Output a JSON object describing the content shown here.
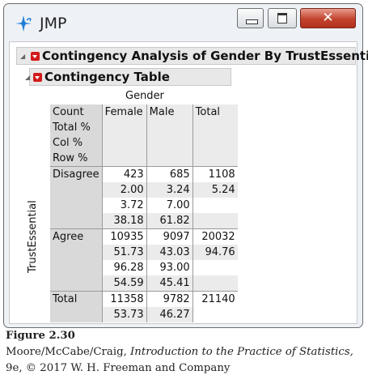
{
  "window": {
    "title": "JMP"
  },
  "outlines": {
    "analysis_title": "Contingency Analysis of Gender By TrustEssential",
    "table_title": "Contingency Table"
  },
  "contingency": {
    "column_variable": "Gender",
    "row_variable": "TrustEssential",
    "stat_labels": [
      "Count",
      "Total %",
      "Col %",
      "Row %"
    ],
    "columns": [
      "Female",
      "Male",
      "Total"
    ],
    "rows": [
      {
        "label": "Disagree",
        "cells": [
          [
            "423",
            "685",
            "1108"
          ],
          [
            "2.00",
            "3.24",
            "5.24"
          ],
          [
            "3.72",
            "7.00",
            ""
          ],
          [
            "38.18",
            "61.82",
            ""
          ]
        ]
      },
      {
        "label": "Agree",
        "cells": [
          [
            "10935",
            "9097",
            "20032"
          ],
          [
            "51.73",
            "43.03",
            "94.76"
          ],
          [
            "96.28",
            "93.00",
            ""
          ],
          [
            "54.59",
            "45.41",
            ""
          ]
        ]
      },
      {
        "label": "Total",
        "cells": [
          [
            "11358",
            "9782",
            "21140"
          ],
          [
            "53.73",
            "46.27",
            ""
          ]
        ]
      }
    ]
  },
  "caption": {
    "figure": "Figure 2.30",
    "line2_pre": "Moore/McCabe/Craig, ",
    "line2_italic": "Introduction to the Practice of Statistics,",
    "line3": "9e, © 2017 W. H. Freeman and Company"
  }
}
